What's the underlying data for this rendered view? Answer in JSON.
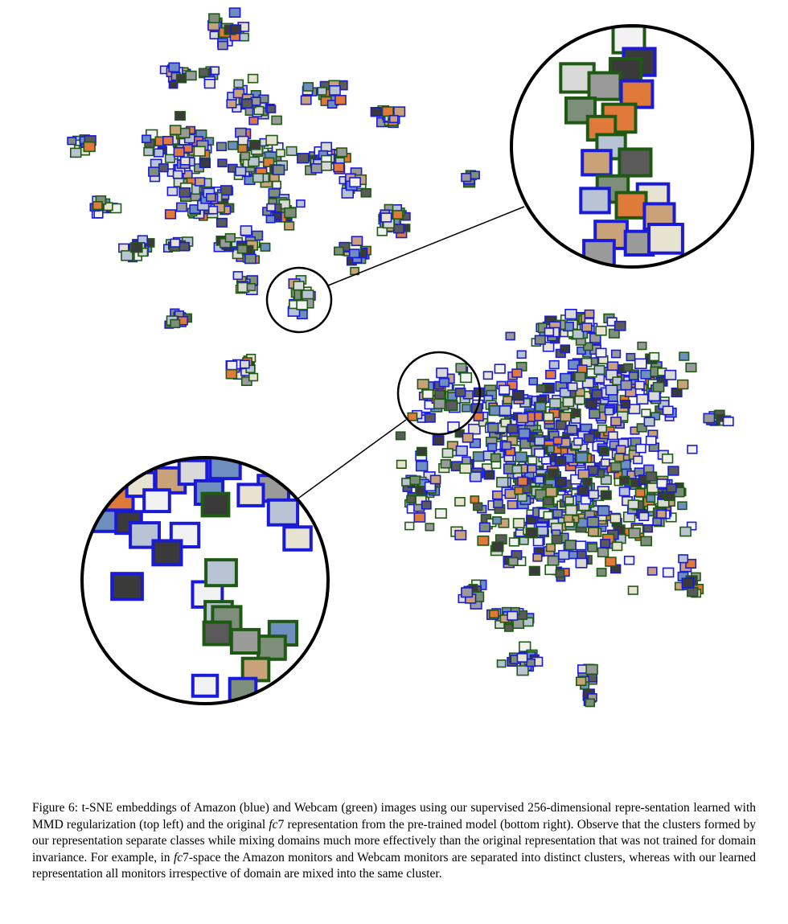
{
  "legend_colors": {
    "amazon": "#1a1ad9",
    "webcam": "#1e5a14"
  },
  "caption": {
    "label": "Figure 6:",
    "part1": "t-SNE embeddings of Amazon (blue) and Webcam (green) images using our supervised 256-dimensional repre-sentation learned with MMD regularization (top left) and the original",
    "fc": "fc",
    "seven": "7",
    "part2": "representation from the pre-trained model (bottom right). Observe that the clusters formed by our representation separate classes while mixing domains much more effectively than the original representation that was not trained for domain invariance. For example, in",
    "part3": "-space the Amazon monitors and Webcam monitors are separated into distinct clusters, whereas with our learned representation all monitors irrespective of domain are mixed into the same cluster."
  }
}
